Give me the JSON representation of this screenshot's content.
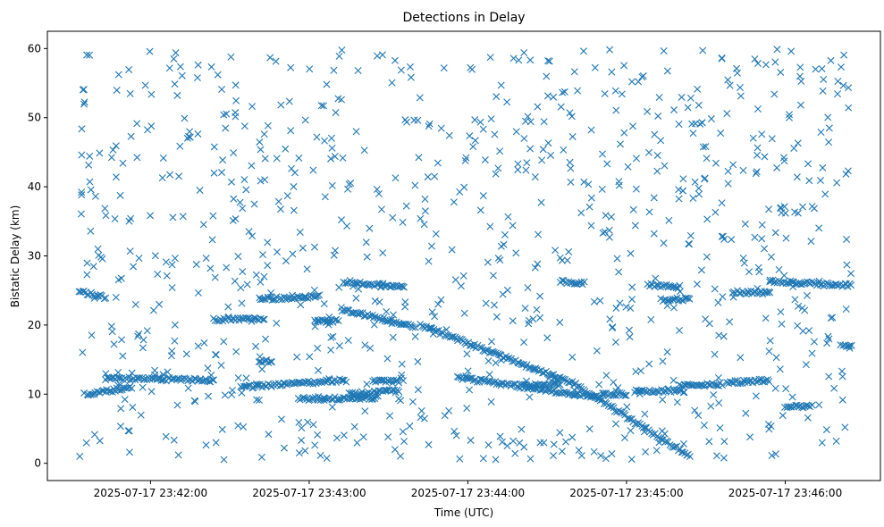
{
  "chart_data": {
    "type": "scatter",
    "title": "Detections in Delay",
    "xlabel": "Time (UTC)",
    "ylabel": "Bistatic Delay (km)",
    "marker": "x",
    "color": "#1f77b4",
    "xlim": [
      "2025-07-17 23:41:21",
      "2025-07-17 23:46:36"
    ],
    "ylim": [
      -2.5,
      62.5
    ],
    "xticks": [
      {
        "label": "2025-07-17 23:42:00",
        "value": "2025-07-17 23:42:00"
      },
      {
        "label": "2025-07-17 23:43:00",
        "value": "2025-07-17 23:43:00"
      },
      {
        "label": "2025-07-17 23:44:00",
        "value": "2025-07-17 23:44:00"
      },
      {
        "label": "2025-07-17 23:45:00",
        "value": "2025-07-17 23:45:00"
      },
      {
        "label": "2025-07-17 23:46:00",
        "value": "2025-07-17 23:46:00"
      }
    ],
    "yticks": [
      0,
      10,
      20,
      30,
      40,
      50,
      60
    ],
    "grid": false,
    "legend": "none",
    "time_range": [
      "2025-07-17 23:41:33",
      "2025-07-17 23:46:25"
    ],
    "tracks": [
      {
        "points": [
          [
            "2025-07-17 23:41:33",
            24.8
          ],
          [
            "2025-07-17 23:41:43",
            24.0
          ]
        ]
      },
      {
        "points": [
          [
            "2025-07-17 23:41:36",
            10.0
          ],
          [
            "2025-07-17 23:41:53",
            11.0
          ]
        ]
      },
      {
        "points": [
          [
            "2025-07-17 23:41:43",
            12.3
          ],
          [
            "2025-07-17 23:42:24",
            12.0
          ]
        ]
      },
      {
        "points": [
          [
            "2025-07-17 23:42:24",
            20.8
          ],
          [
            "2025-07-17 23:42:43",
            20.8
          ]
        ]
      },
      {
        "points": [
          [
            "2025-07-17 23:42:34",
            11.0
          ],
          [
            "2025-07-17 23:43:14",
            12.0
          ]
        ]
      },
      {
        "points": [
          [
            "2025-07-17 23:42:41",
            23.7
          ],
          [
            "2025-07-17 23:43:04",
            24.2
          ]
        ]
      },
      {
        "points": [
          [
            "2025-07-17 23:42:41",
            14.8
          ],
          [
            "2025-07-17 23:42:46",
            14.8
          ]
        ]
      },
      {
        "points": [
          [
            "2025-07-17 23:42:56",
            9.3
          ],
          [
            "2025-07-17 23:43:26",
            9.5
          ]
        ]
      },
      {
        "points": [
          [
            "2025-07-17 23:43:02",
            20.5
          ],
          [
            "2025-07-17 23:43:11",
            20.6
          ]
        ]
      },
      {
        "points": [
          [
            "2025-07-17 23:43:12",
            22.3
          ],
          [
            "2025-07-17 23:43:40",
            19.8
          ]
        ]
      },
      {
        "points": [
          [
            "2025-07-17 23:43:15",
            10.0
          ],
          [
            "2025-07-17 23:43:34",
            10.5
          ]
        ]
      },
      {
        "points": [
          [
            "2025-07-17 23:43:13",
            26.3
          ],
          [
            "2025-07-17 23:43:36",
            25.5
          ]
        ]
      },
      {
        "points": [
          [
            "2025-07-17 23:43:24",
            12.0
          ],
          [
            "2025-07-17 23:43:34",
            11.8
          ]
        ]
      },
      {
        "points": [
          [
            "2025-07-17 23:43:42",
            20.0
          ],
          [
            "2025-07-17 23:44:40",
            11.5
          ]
        ]
      },
      {
        "points": [
          [
            "2025-07-17 23:44:40",
            11.5
          ],
          [
            "2025-07-17 23:45:24",
            1.0
          ]
        ]
      },
      {
        "points": [
          [
            "2025-07-17 23:43:56",
            12.4
          ],
          [
            "2025-07-17 23:44:50",
            9.5
          ]
        ]
      },
      {
        "points": [
          [
            "2025-07-17 23:44:20",
            11.2
          ],
          [
            "2025-07-17 23:44:35",
            11.5
          ]
        ]
      },
      {
        "points": [
          [
            "2025-07-17 23:44:35",
            26.3
          ],
          [
            "2025-07-17 23:44:44",
            26.0
          ]
        ]
      },
      {
        "points": [
          [
            "2025-07-17 23:44:51",
            10.0
          ],
          [
            "2025-07-17 23:45:00",
            10.0
          ]
        ]
      },
      {
        "points": [
          [
            "2025-07-17 23:45:03",
            10.4
          ],
          [
            "2025-07-17 23:45:22",
            10.5
          ]
        ]
      },
      {
        "points": [
          [
            "2025-07-17 23:45:08",
            25.8
          ],
          [
            "2025-07-17 23:45:20",
            25.5
          ]
        ]
      },
      {
        "points": [
          [
            "2025-07-17 23:45:13",
            23.7
          ],
          [
            "2025-07-17 23:45:24",
            23.7
          ]
        ]
      },
      {
        "points": [
          [
            "2025-07-17 23:45:20",
            11.3
          ],
          [
            "2025-07-17 23:45:36",
            11.4
          ]
        ]
      },
      {
        "points": [
          [
            "2025-07-17 23:45:38",
            11.7
          ],
          [
            "2025-07-17 23:45:54",
            12.0
          ]
        ]
      },
      {
        "points": [
          [
            "2025-07-17 23:45:40",
            24.8
          ],
          [
            "2025-07-17 23:45:54",
            24.6
          ]
        ]
      },
      {
        "points": [
          [
            "2025-07-17 23:45:54",
            26.3
          ],
          [
            "2025-07-17 23:46:25",
            25.7
          ]
        ]
      },
      {
        "points": [
          [
            "2025-07-17 23:46:00",
            8.2
          ],
          [
            "2025-07-17 23:46:10",
            8.3
          ]
        ]
      },
      {
        "points": [
          [
            "2025-07-17 23:46:22",
            17.0
          ],
          [
            "2025-07-17 23:46:25",
            17.0
          ]
        ]
      }
    ],
    "background_noise": {
      "y_range": [
        0.5,
        60.0
      ]
    }
  }
}
